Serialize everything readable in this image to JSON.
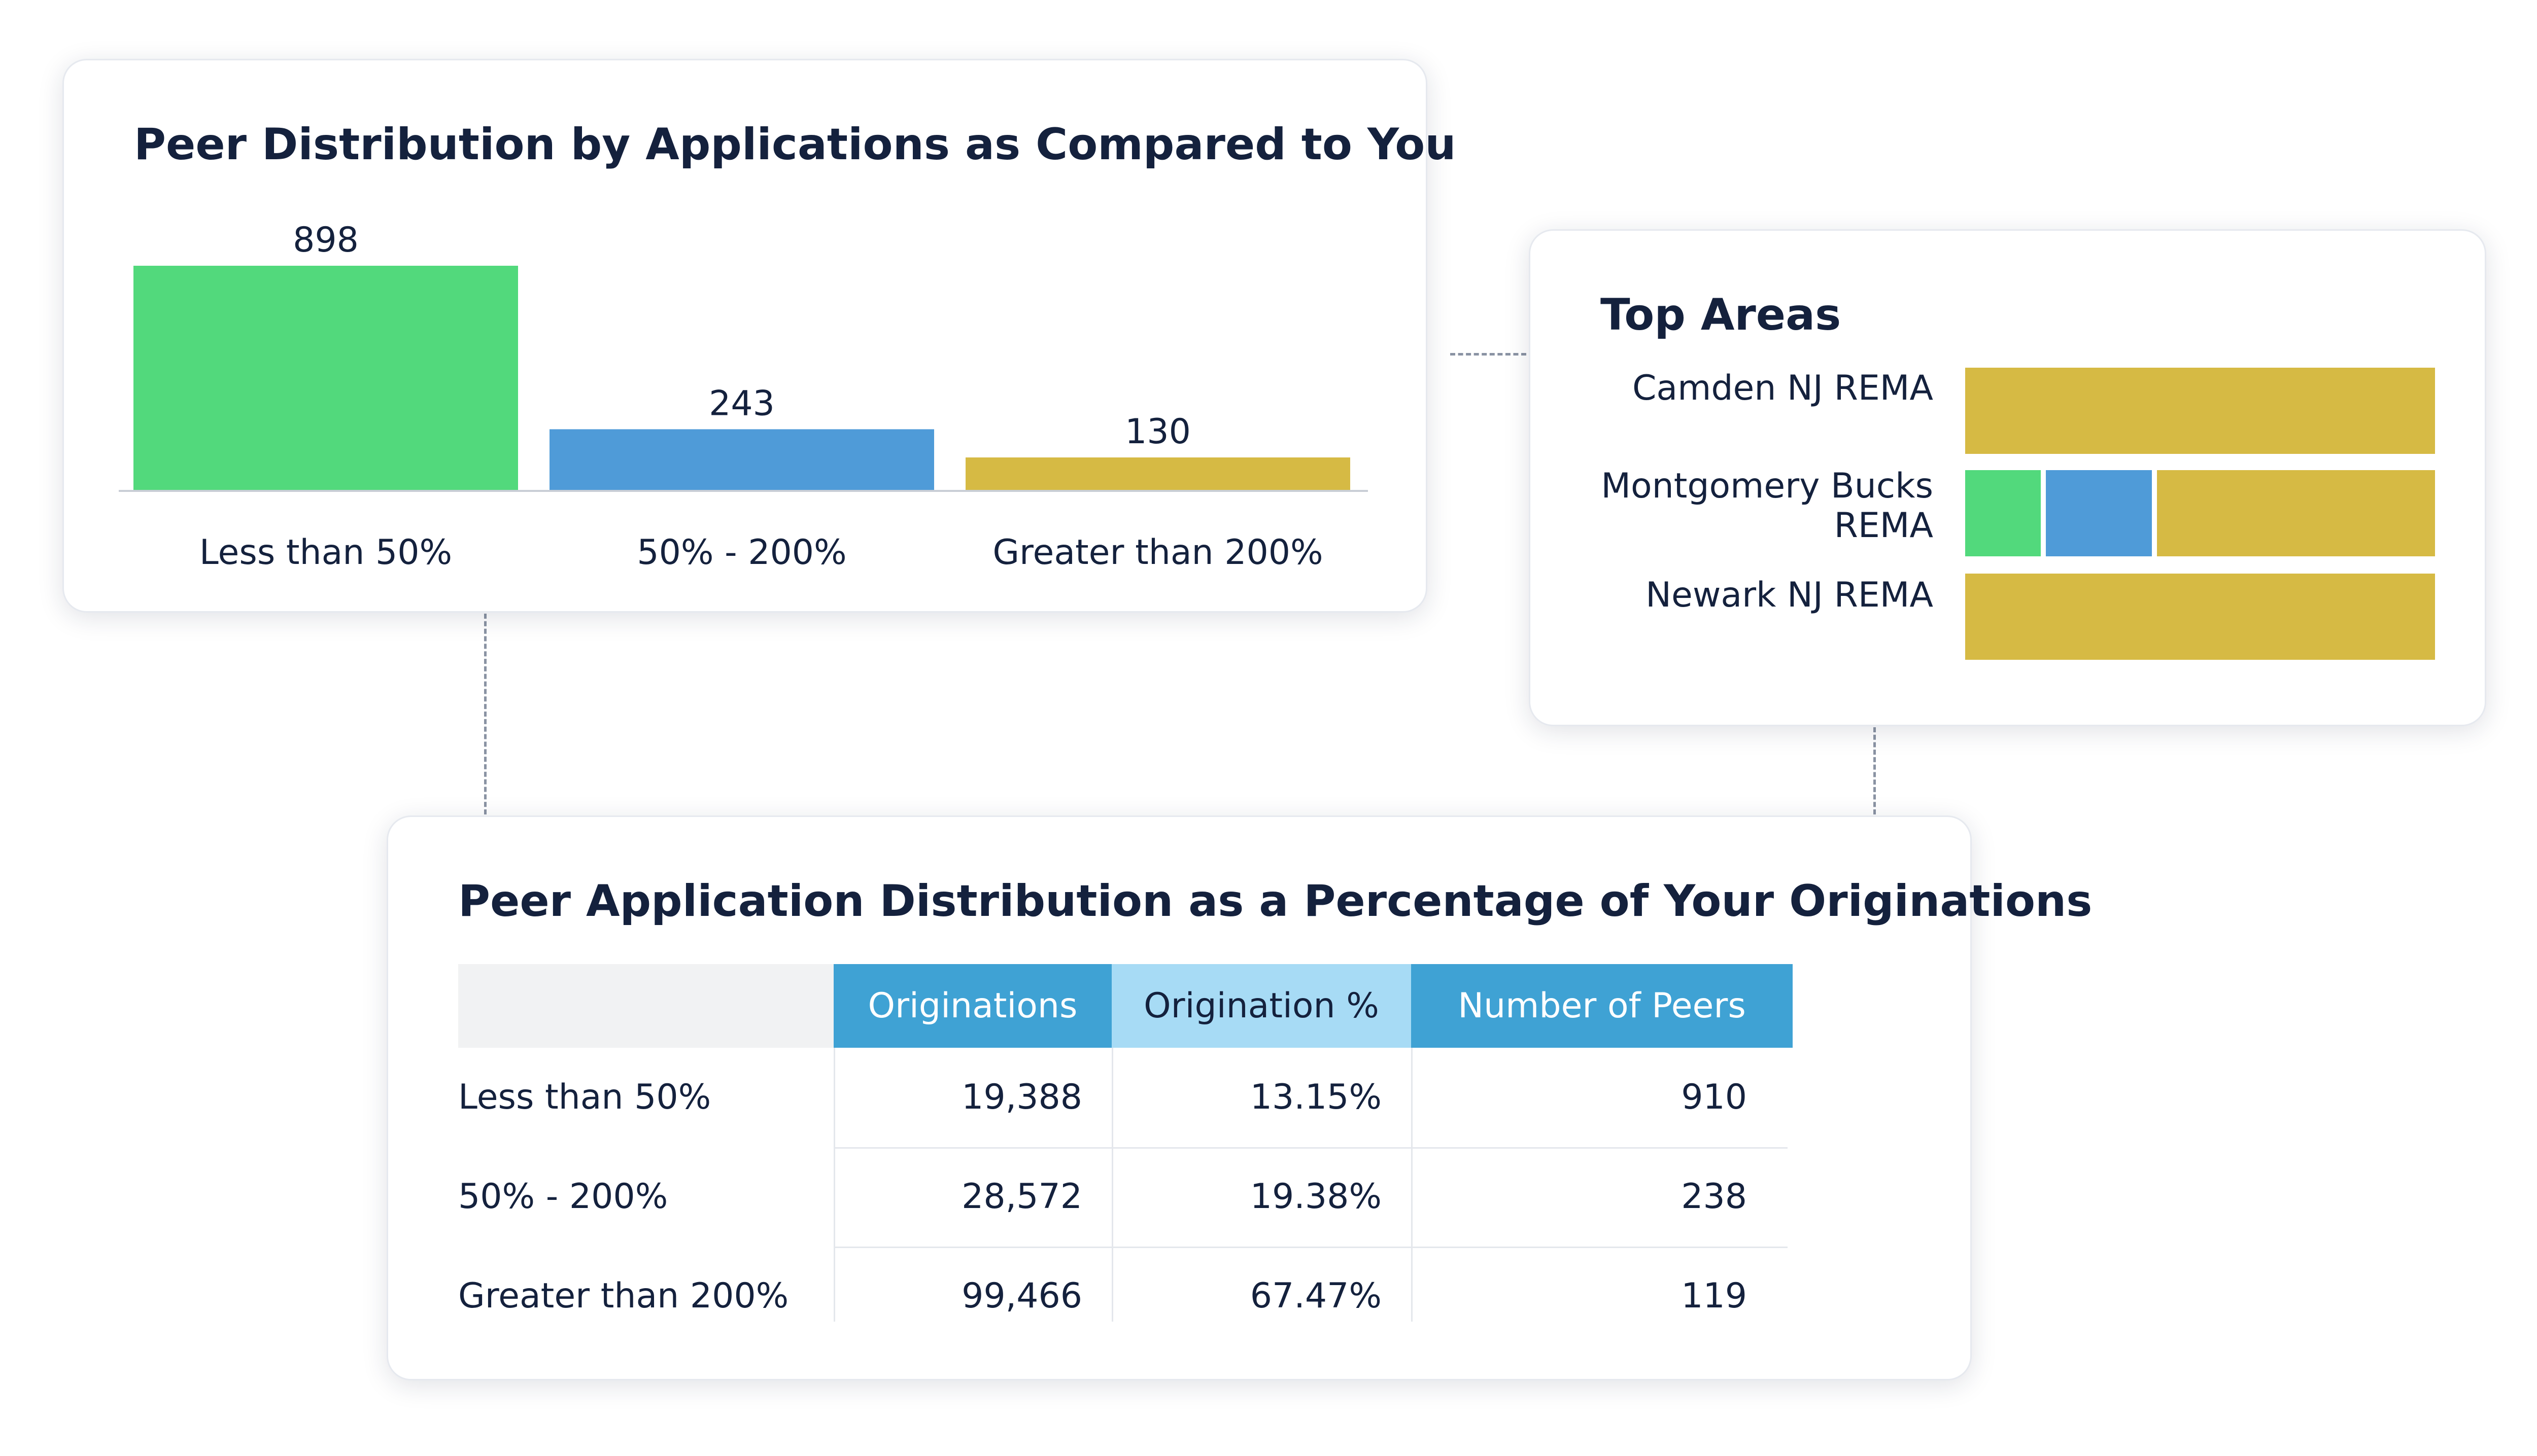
{
  "chart_data": [
    {
      "type": "bar",
      "title": "Peer Distribution by Applications as Compared to You",
      "categories": [
        "Less than 50%",
        "50% - 200%",
        "Greater than 200%"
      ],
      "values": [
        898,
        243,
        130
      ],
      "data_labels": [
        "898",
        "243",
        "130"
      ],
      "colors": [
        "#52d97c",
        "#4f9bd8",
        "#d6ba44"
      ],
      "ylim": [
        0,
        898
      ],
      "grid": false,
      "legend": "none"
    },
    {
      "type": "bar",
      "title": "Top Areas",
      "orientation": "horizontal-stacked",
      "categories": [
        "Camden NJ REMA",
        "Montgomery Bucks REMA",
        "Newark NJ REMA"
      ],
      "segment_colors": [
        "#52d97c",
        "#4f9bd8",
        "#d6ba44"
      ],
      "series": [
        {
          "values": [
            0,
            0.165,
            0
          ]
        },
        {
          "values": [
            0,
            0.23,
            0
          ]
        },
        {
          "values": [
            1.0,
            0.605,
            1.0
          ]
        }
      ],
      "grid": false,
      "legend": "none"
    },
    {
      "type": "table",
      "title": "Peer Application Distribution as a Percentage of Your Originations",
      "columns": [
        "",
        "Originations",
        "Origination %",
        "Number of Peers"
      ],
      "rows": [
        [
          "Less than 50%",
          "19,388",
          "13.15%",
          "910"
        ],
        [
          "50% - 200%",
          "28,572",
          "19.38%",
          "238"
        ],
        [
          "Greater than 200%",
          "99,466",
          "67.47%",
          "119"
        ]
      ],
      "header_colors": [
        "#f1f2f3",
        "#3fa2d4",
        "#a7dbf5",
        "#3fa2d4"
      ]
    }
  ]
}
